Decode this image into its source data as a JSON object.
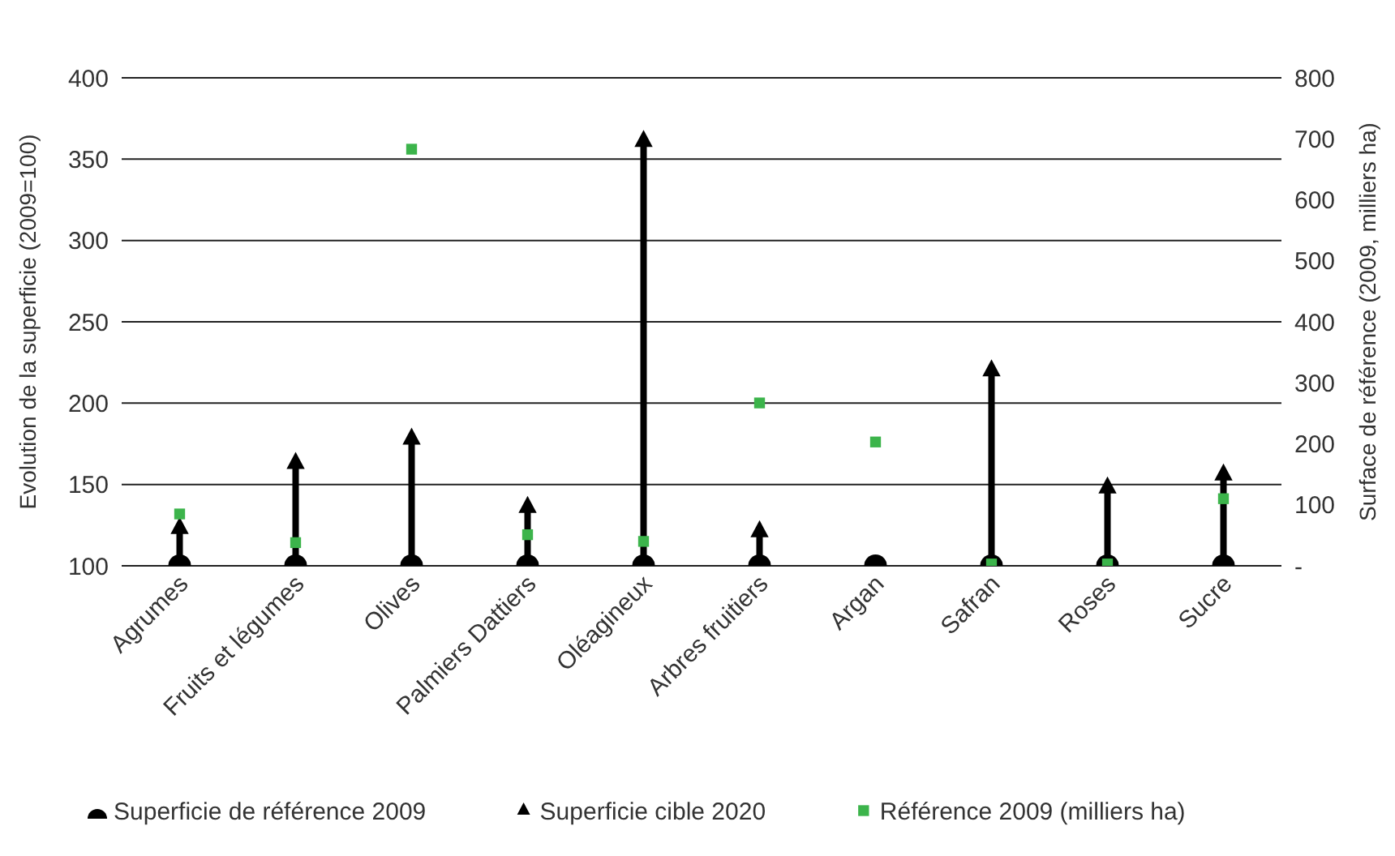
{
  "chart_data": {
    "type": "scatter",
    "ylabel": "Evolution de la superficie (2009=100)",
    "y2label": "Surface de référence (2009, milliers ha)",
    "categories": [
      "Agrumes",
      "Fruits et légumes",
      "Olives",
      "Palmiers Dattiers",
      "Oléagineux",
      "Arbres fruitiers",
      "Argan",
      "Safran",
      "Roses",
      "Sucre"
    ],
    "ylim": [
      100,
      400
    ],
    "yticks": [
      100,
      150,
      200,
      250,
      300,
      350,
      400
    ],
    "y2lim": [
      0,
      800
    ],
    "y2ticks": [
      {
        "value": 0,
        "label": "-"
      },
      100,
      200,
      300,
      400,
      500,
      600,
      700,
      800
    ],
    "grid": "y",
    "legend": "bottom",
    "series": [
      {
        "name": "Superficie de référence 2009",
        "marker": "circle",
        "color": "#000000",
        "values": [
          100,
          100,
          100,
          100,
          100,
          100,
          100,
          100,
          100,
          100
        ]
      },
      {
        "name": "Superficie cible 2020",
        "type": "lollipop",
        "marker": "triangle",
        "color": "#000000",
        "values": [
          123,
          163,
          178,
          136,
          361,
          121,
          null,
          220,
          148,
          156
        ]
      },
      {
        "name": "Référence 2009 (milliers ha)",
        "type": "scatter",
        "marker": "square",
        "axis": "y2",
        "color": "#3cb44b",
        "values": [
          85,
          38,
          683,
          51,
          40,
          267,
          203,
          3,
          3,
          110
        ]
      }
    ]
  }
}
